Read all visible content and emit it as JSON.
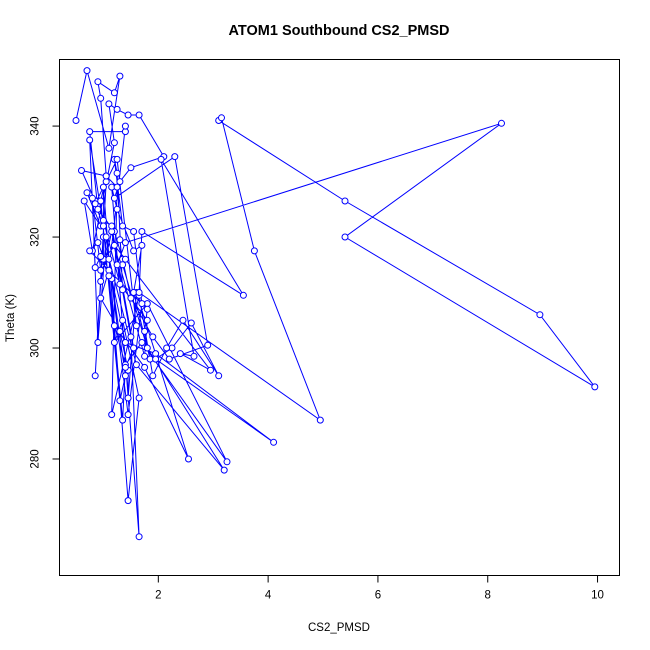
{
  "chart_data": {
    "type": "line",
    "title": "ATOM1 Southbound CS2_PMSD",
    "xlabel": "CS2_PMSD",
    "ylabel": "Theta (K)",
    "xlim": [
      0.2,
      10.4
    ],
    "ylim": [
      259,
      352
    ],
    "x_ticks": [
      2,
      4,
      6,
      8,
      10
    ],
    "x_tick_labels": [
      "2",
      "4",
      "6",
      "8",
      "10"
    ],
    "y_ticks": [
      280,
      300,
      320,
      340
    ],
    "y_tick_labels": [
      "280",
      "300",
      "320",
      "340"
    ],
    "grid": false,
    "legend": "none",
    "markers": "open-circle",
    "colors": {
      "series": "#0000ff",
      "axes": "#000000",
      "background": "#ffffff"
    },
    "series": [
      {
        "values": [
          [
            0.5,
            341
          ],
          [
            0.7,
            350
          ],
          [
            1.1,
            336
          ],
          [
            1.3,
            349
          ],
          [
            1.2,
            346
          ],
          [
            0.9,
            348
          ],
          [
            0.95,
            345
          ],
          [
            1.05,
            331
          ],
          [
            0.6,
            332
          ],
          [
            0.85,
            326.5
          ],
          [
            0.7,
            328
          ],
          [
            0.95,
            322
          ],
          [
            0.65,
            326.5
          ],
          [
            0.8,
            317.5
          ],
          [
            1.2,
            337
          ],
          [
            1.1,
            344
          ],
          [
            1.25,
            343
          ],
          [
            1.45,
            342
          ],
          [
            1.65,
            342
          ],
          [
            2.1,
            334.5
          ],
          [
            1.5,
            332.5
          ],
          [
            1.3,
            330
          ],
          [
            1.2,
            327
          ],
          [
            2.3,
            334.5
          ],
          [
            2.9,
            300.5
          ],
          [
            2.2,
            298
          ],
          [
            1.9,
            302
          ],
          [
            1.5,
            309
          ],
          [
            1.35,
            316
          ],
          [
            1.2,
            321
          ],
          [
            0.9,
            325
          ],
          [
            0.75,
            339
          ],
          [
            1.4,
            339
          ],
          [
            1.4,
            340
          ],
          [
            1.1,
            314
          ],
          [
            0.95,
            309
          ],
          [
            1.3,
            303
          ],
          [
            1.45,
            296
          ],
          [
            1.45,
            291
          ],
          [
            1.6,
            310
          ],
          [
            2.55,
            280
          ],
          [
            1.75,
            296.5
          ],
          [
            1.2,
            304
          ],
          [
            1.4,
            297
          ],
          [
            1.7,
            301
          ],
          [
            3.25,
            279.5
          ],
          [
            1.8,
            308
          ],
          [
            1.2,
            301
          ],
          [
            1.35,
            305
          ],
          [
            1.65,
            291
          ],
          [
            1.45,
            272.5
          ],
          [
            1.0,
            329
          ],
          [
            1.0,
            316
          ],
          [
            1.3,
            319.5
          ],
          [
            1.35,
            315
          ],
          [
            1.8,
            300
          ],
          [
            3.2,
            278
          ],
          [
            1.6,
            297
          ],
          [
            1.0,
            320
          ],
          [
            0.85,
            295
          ],
          [
            1.05,
            330
          ],
          [
            0.95,
            312
          ],
          [
            1.15,
            321
          ],
          [
            1.5,
            302
          ],
          [
            1.65,
            266
          ],
          [
            1.15,
            329
          ],
          [
            1.25,
            325
          ],
          [
            1.55,
            317.5
          ],
          [
            1.7,
            318.5
          ],
          [
            1.55,
            310
          ],
          [
            1.85,
            298
          ],
          [
            1.75,
            303
          ],
          [
            1.8,
            307
          ],
          [
            0.75,
            317.5
          ],
          [
            0.9,
            319
          ],
          [
            1.15,
            312.5
          ],
          [
            1.4,
            301
          ],
          [
            1.95,
            299
          ],
          [
            4.1,
            283
          ],
          [
            1.95,
            298
          ],
          [
            2.25,
            300
          ],
          [
            2.6,
            304.5
          ],
          [
            3.1,
            295
          ],
          [
            2.45,
            305
          ],
          [
            2.15,
            300
          ],
          [
            1.9,
            295
          ],
          [
            1.65,
            309.5
          ],
          [
            1.15,
            288
          ],
          [
            1.25,
            329
          ],
          [
            1.05,
            331
          ],
          [
            0.95,
            326.5
          ],
          [
            1.3,
            290.5
          ],
          [
            1.4,
            295
          ],
          [
            1.1,
            316
          ],
          [
            0.95,
            314
          ],
          [
            0.8,
            327
          ],
          [
            0.9,
            301
          ],
          [
            1.05,
            320
          ],
          [
            1.45,
            288
          ],
          [
            1.7,
            308
          ],
          [
            1.55,
            321
          ],
          [
            1.35,
            322
          ],
          [
            1.2,
            334
          ],
          [
            1.25,
            331.5
          ],
          [
            1.35,
            310.5
          ],
          [
            1.25,
            315
          ],
          [
            1.4,
            319
          ],
          [
            8.25,
            340.5
          ],
          [
            5.4,
            320
          ],
          [
            9.95,
            293
          ],
          [
            8.95,
            306
          ],
          [
            5.4,
            326.5
          ],
          [
            3.1,
            341
          ],
          [
            3.15,
            341.5
          ],
          [
            3.75,
            317.5
          ],
          [
            4.95,
            287
          ],
          [
            1.65,
            310
          ],
          [
            1.7,
            321
          ],
          [
            3.55,
            309.5
          ],
          [
            2.05,
            334
          ],
          [
            2.65,
            298.5
          ],
          [
            2.4,
            299
          ],
          [
            2.95,
            296
          ],
          [
            1.4,
            316
          ],
          [
            1.2,
            318.5
          ],
          [
            1.75,
            298.5
          ],
          [
            1.8,
            305
          ],
          [
            1.3,
            311.5
          ],
          [
            1.0,
            323
          ],
          [
            1.15,
            322
          ],
          [
            1.55,
            300
          ],
          [
            1.4,
            296.5
          ],
          [
            1.35,
            287
          ],
          [
            1.1,
            313
          ],
          [
            0.95,
            316.5
          ],
          [
            0.85,
            314.5
          ],
          [
            0.75,
            337.5
          ],
          [
            1.0,
            322
          ],
          [
            0.85,
            326
          ],
          [
            1.25,
            334
          ],
          [
            1.6,
            304
          ]
        ]
      }
    ]
  }
}
